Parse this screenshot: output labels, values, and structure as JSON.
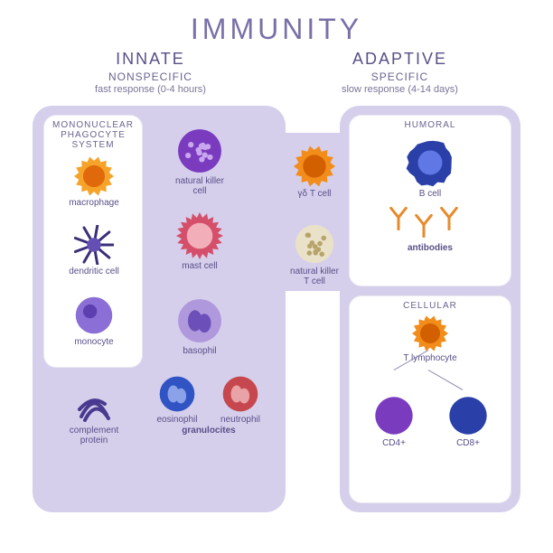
{
  "title": "IMMUNITY",
  "background_color": "#ffffff",
  "panel_color": "#d5cfeb",
  "subbox_color": "#ffffff",
  "text_colors": {
    "title": "#7a6fa8",
    "heading": "#5a4f88",
    "sub": "#6b6390",
    "label": "#5a4f88"
  },
  "innate": {
    "heading": "INNATE",
    "sub1": "NONSPECIFIC",
    "sub2": "fast response (0-4 hours)",
    "mononuclear_box": {
      "title_l1": "MONONUCLEAR",
      "title_l2": "PHAGOCYTE",
      "title_l3": "SYSTEM",
      "cells": [
        {
          "name": "macrophage",
          "color": "#f6a32a",
          "accent": "#e06a0b",
          "shape": "spiky"
        },
        {
          "name": "dendritic cell",
          "color": "#3b2f78",
          "accent": "#6450b5",
          "shape": "dendritic"
        },
        {
          "name": "monocyte",
          "color": "#8b6fd6",
          "accent": "#5e3fb0",
          "shape": "round"
        }
      ]
    },
    "free_cells": [
      {
        "name": "natural killer\ncell",
        "color": "#7a3bbf",
        "accent": "#c9a7ef",
        "shape": "granular"
      },
      {
        "name": "mast cell",
        "color": "#d54f6a",
        "accent": "#f2aeb9",
        "shape": "spiky-soft"
      },
      {
        "name": "basophil",
        "color": "#b098dd",
        "accent": "#6c4fb8",
        "shape": "lobed"
      }
    ],
    "granulocytes": {
      "label": "granulocites",
      "cells": [
        {
          "name": "eosinophil",
          "color": "#3054c4",
          "accent": "#8ca2e8",
          "shape": "bilobed"
        },
        {
          "name": "neutrophil",
          "color": "#c6484e",
          "accent": "#e9a3a6",
          "shape": "multilobed"
        }
      ]
    },
    "complement": {
      "name": "complement\nprotein",
      "color": "#4a3a8f",
      "shape": "fiber"
    }
  },
  "bridge_cells": [
    {
      "name": "γδ T cell",
      "color": "#f28c1a",
      "accent": "#d25f00",
      "shape": "spiky"
    },
    {
      "name": "natural killer\nT cell",
      "color": "#e9e1c8",
      "accent": "#b8a46a",
      "shape": "granular"
    }
  ],
  "adaptive": {
    "heading": "ADAPTIVE",
    "sub1": "SPECIFIC",
    "sub2": "slow response (4-14 days)",
    "humoral": {
      "title": "HUMORAL",
      "bcell": {
        "name": "B cell",
        "color": "#2a3fa8",
        "accent": "#5f78e6",
        "shape": "rough"
      },
      "antibodies_label": "antibodies",
      "antibody_color": "#e88a2c"
    },
    "cellular": {
      "title": "CELLULAR",
      "tlymph": {
        "name": "T lymphocyte",
        "color": "#f28c1a",
        "accent": "#d25f00",
        "shape": "spiky"
      },
      "cd4": {
        "name": "CD4+",
        "color": "#7a3bbf",
        "accent": "#c9a7ef"
      },
      "cd8": {
        "name": "CD8+",
        "color": "#2a3fa8",
        "accent": "#6f87e8"
      }
    }
  }
}
